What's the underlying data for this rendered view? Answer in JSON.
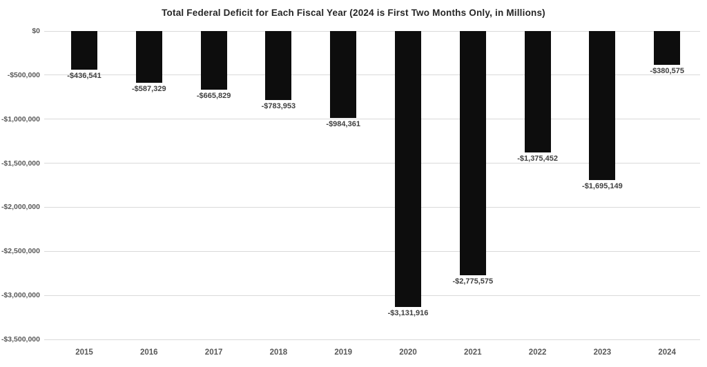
{
  "chart_data": {
    "type": "bar",
    "title": "Total Federal Deficit for Each Fiscal Year (2024 is First Two Months Only, in Millions)",
    "xlabel": "",
    "ylabel": "",
    "categories": [
      "2015",
      "2016",
      "2017",
      "2018",
      "2019",
      "2020",
      "2021",
      "2022",
      "2023",
      "2024"
    ],
    "values": [
      -436541,
      -587329,
      -665829,
      -783953,
      -984361,
      -3131916,
      -2775575,
      -1375452,
      -1695149,
      -380575
    ],
    "data_labels": [
      "-$436,541",
      "-$587,329",
      "-$665,829",
      "-$783,953",
      "-$984,361",
      "-$3,131,916",
      "-$2,775,575",
      "-$1,375,452",
      "-$1,695,149",
      "-$380,575"
    ],
    "y_ticks": [
      {
        "value": 0,
        "label": "$0"
      },
      {
        "value": -500000,
        "label": "-$500,000"
      },
      {
        "value": -1000000,
        "label": "-$1,000,000"
      },
      {
        "value": -1500000,
        "label": "-$1,500,000"
      },
      {
        "value": -2000000,
        "label": "-$2,000,000"
      },
      {
        "value": -2500000,
        "label": "-$2,500,000"
      },
      {
        "value": -3000000,
        "label": "-$3,000,000"
      },
      {
        "value": -3500000,
        "label": "-$3,500,000"
      }
    ],
    "ylim": [
      -3500000,
      0
    ],
    "grid": true,
    "legend": false,
    "bar_color": "#0d0d0d",
    "gridline_color": "#d9d9d9",
    "value_label_color": "#404040",
    "axis_label_color": "#595959",
    "background_color": "#ffffff"
  }
}
